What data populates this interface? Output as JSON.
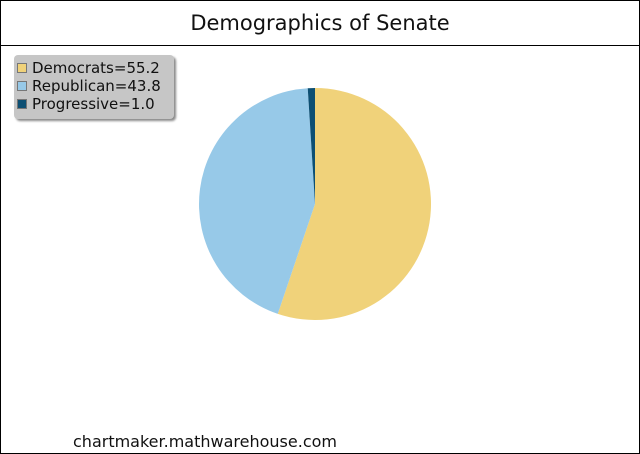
{
  "chart_data": {
    "type": "pie",
    "title": "Demographics of Senate",
    "categories": [
      "Democrats",
      "Republican",
      "Progressive"
    ],
    "values": [
      55.2,
      43.8,
      1.0
    ],
    "colors": [
      "#f0d27a",
      "#97c9e8",
      "#0d4f73"
    ],
    "legend": {
      "placement": "top-left",
      "entries": [
        "Democrats=55.2",
        "Republican=43.8",
        "Progressive=1.0"
      ]
    }
  },
  "footer": {
    "source": "chartmaker.mathwarehouse.com"
  }
}
